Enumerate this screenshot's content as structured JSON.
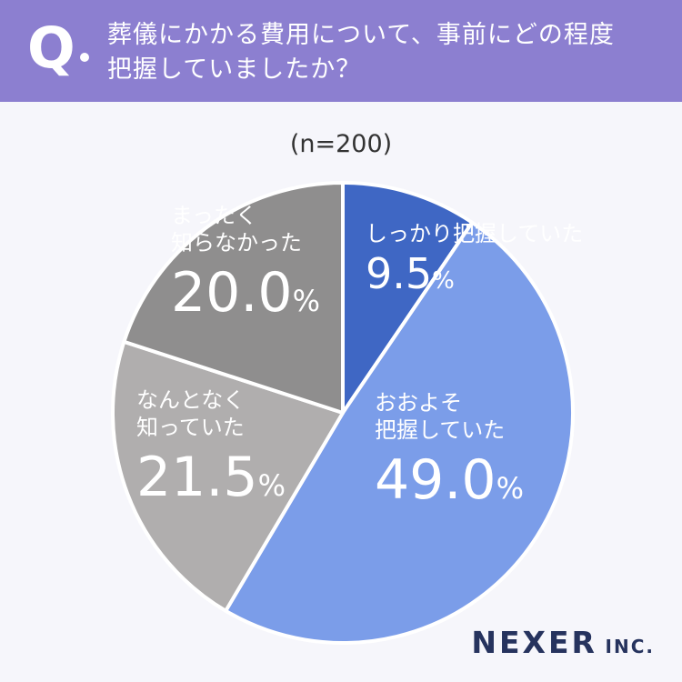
{
  "header": {
    "q_mark": "Q",
    "question_line1": "葬儀にかかる費用について、事前にどの程度",
    "question_line2": "把握していましたか？"
  },
  "sample_size": "(n=200)",
  "colors": {
    "header_bg": "#8c7fd0",
    "slice_1": "#3f67c4",
    "slice_2": "#7b9de9",
    "slice_3": "#b0aeae",
    "slice_4": "#8f8e8e"
  },
  "chart_data": {
    "type": "pie",
    "series": [
      {
        "label": "しっかり把握していた",
        "value": 9.5,
        "display": "9.5",
        "unit": "%"
      },
      {
        "label": "おおよそ把握していた",
        "value": 49.0,
        "display": "49.0",
        "unit": "%"
      },
      {
        "label": "なんとなく知っていた",
        "value": 21.5,
        "display": "21.5",
        "unit": "%"
      },
      {
        "label": "まったく知らなかった",
        "value": 20.0,
        "display": "20.0",
        "unit": "%"
      }
    ],
    "label_lines": [
      [
        "しっかり把握していた"
      ],
      [
        "おおよそ",
        "把握していた"
      ],
      [
        "なんとなく",
        "知っていた"
      ],
      [
        "まったく",
        "知らなかった"
      ]
    ]
  },
  "logo": {
    "main": "NEXER",
    "suffix": "INC."
  }
}
